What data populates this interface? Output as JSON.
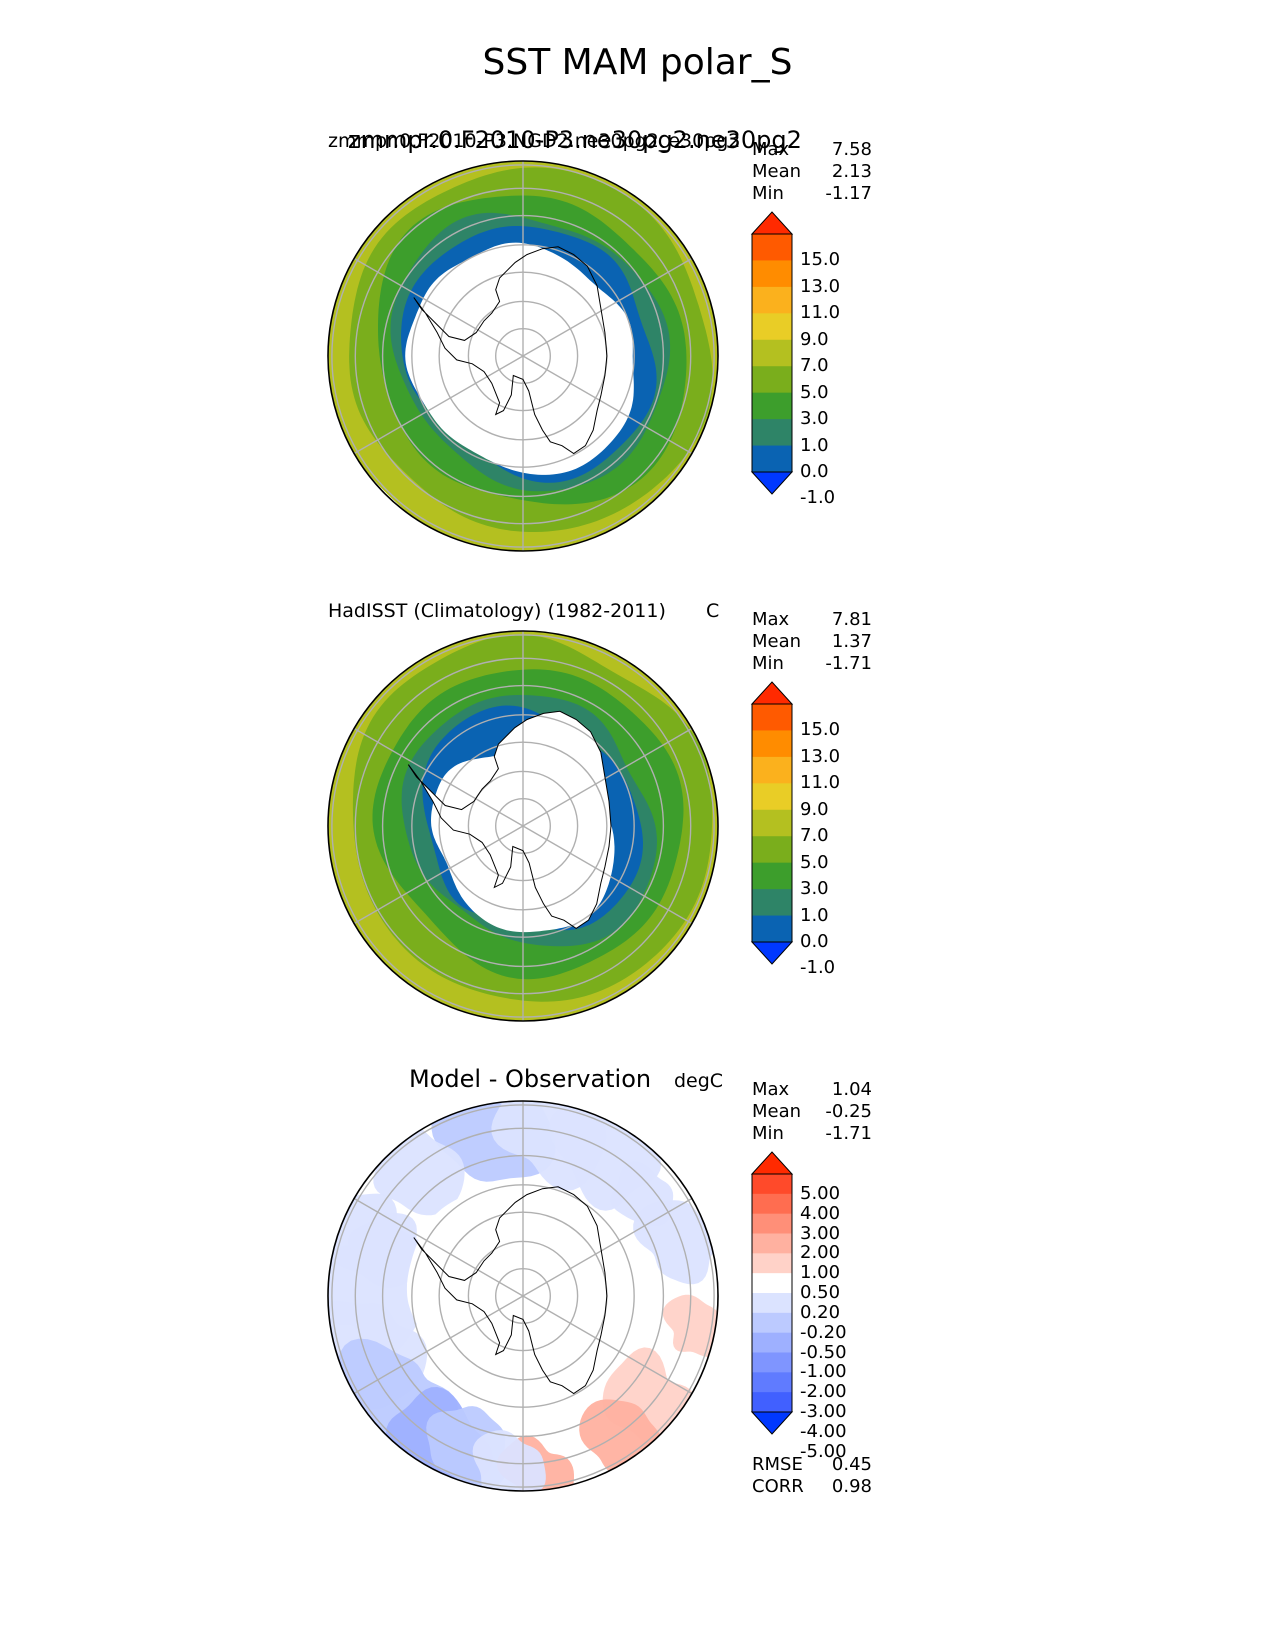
{
  "chart_data": {
    "type": "polar_contour_map",
    "title": "SST MAM polar_S",
    "panels": [
      {
        "name": "model",
        "title_left": "zmmpr.0.F2010-P3.NGD2.ne30pg2_e30pg2",
        "title_overlap": "zmmpr.0.F2010-P3.ne30pg2.ne30pg2",
        "title_right": "",
        "stats": [
          {
            "label": "Max",
            "value": "7.58"
          },
          {
            "label": "Mean",
            "value": "2.13"
          },
          {
            "label": "Min",
            "value": "-1.17"
          }
        ],
        "colorbar": {
          "levels": [
            "15.0",
            "13.0",
            "11.0",
            "9.0",
            "7.0",
            "5.0",
            "3.0",
            "1.0",
            "0.0",
            "-1.0"
          ],
          "colors": [
            "#ff2a00",
            "#ff5a00",
            "#ff8c00",
            "#fbb11d",
            "#e9cd26",
            "#b4c020",
            "#7aae1c",
            "#3d9e2c",
            "#2e8467",
            "#0a63b2",
            "#0038ff"
          ]
        },
        "fields": [
          "#b4c020",
          "#7aae1c",
          "#3d9e2c",
          "#2e8467",
          "#0a63b2"
        ],
        "ice_extent": "large"
      },
      {
        "name": "obs",
        "title_left": "HadISST (Climatology) (1982-2011)",
        "title_right": "C",
        "stats": [
          {
            "label": "Max",
            "value": "7.81"
          },
          {
            "label": "Mean",
            "value": "1.37"
          },
          {
            "label": "Min",
            "value": "-1.71"
          }
        ],
        "colorbar": {
          "levels": [
            "15.0",
            "13.0",
            "11.0",
            "9.0",
            "7.0",
            "5.0",
            "3.0",
            "1.0",
            "0.0",
            "-1.0"
          ],
          "colors": [
            "#ff2a00",
            "#ff5a00",
            "#ff8c00",
            "#fbb11d",
            "#e9cd26",
            "#b4c020",
            "#7aae1c",
            "#3d9e2c",
            "#2e8467",
            "#0a63b2",
            "#0038ff"
          ]
        },
        "fields": [
          "#b4c020",
          "#7aae1c",
          "#3d9e2c",
          "#2e8467",
          "#0a63b2"
        ],
        "ice_extent": "small"
      },
      {
        "name": "diff",
        "title_left": "Model - Observation",
        "title_right": "degC",
        "stats": [
          {
            "label": "Max",
            "value": "1.04"
          },
          {
            "label": "Mean",
            "value": "-0.25"
          },
          {
            "label": "Min",
            "value": "-1.71"
          }
        ],
        "colorbar": {
          "levels": [
            "5.00",
            "4.00",
            "3.00",
            "2.00",
            "1.00",
            "0.50",
            "0.20",
            "-0.20",
            "-0.50",
            "-1.00",
            "-2.00",
            "-3.00",
            "-4.00",
            "-5.00"
          ],
          "colors": [
            "#ff2a00",
            "#ff4a2a",
            "#ff6d50",
            "#ff8f78",
            "#ffb1a0",
            "#ffd2c8",
            "#ffffff",
            "#dbe3ff",
            "#bccaff",
            "#9eb0ff",
            "#7f95ff",
            "#607bff",
            "#4160ff",
            "#0038ff"
          ]
        },
        "metrics": [
          {
            "label": "RMSE",
            "value": "0.45"
          },
          {
            "label": "CORR",
            "value": "0.98"
          }
        ]
      }
    ]
  },
  "colors": {
    "ice": "#ffffff",
    "grid": "#b0b0b0",
    "coast": "#000000",
    "diff_neg_light": "#dbe3ff",
    "diff_neg_mid": "#bccaff",
    "diff_neg_dark": "#9eb0ff",
    "diff_pos_light": "#ffd2c8",
    "diff_pos_mid": "#ffb1a0"
  }
}
